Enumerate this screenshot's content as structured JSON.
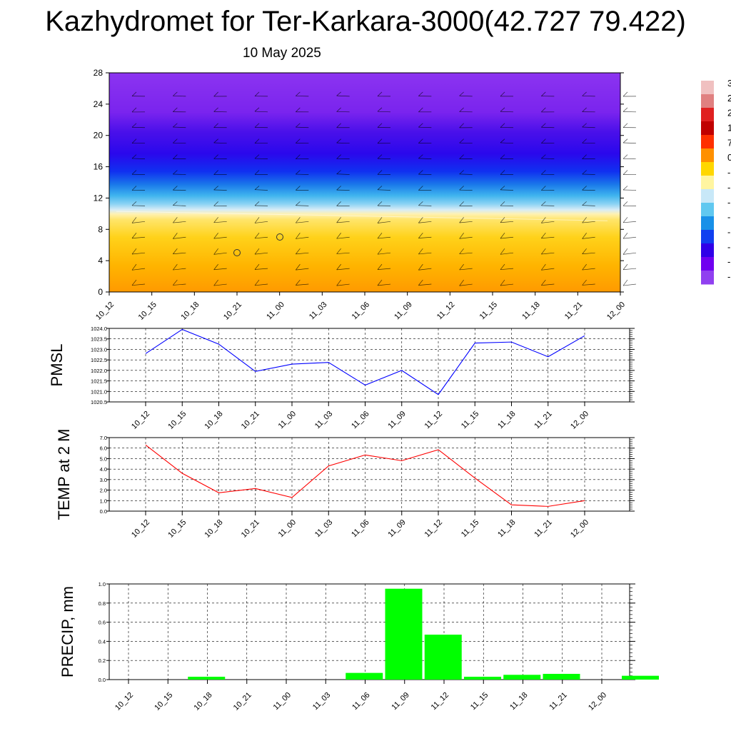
{
  "header": {
    "title": "Kazhydromet for Ter-Karkara-3000(42.727 79.422)",
    "date": "10 May 2025"
  },
  "colors": {
    "pmsl_line": "#0000ff",
    "temp_line": "#ff0000",
    "precip_bar": "#00ff00",
    "grid": "#000000"
  },
  "chart_data": [
    {
      "id": "profile",
      "type": "heatmap",
      "title": "",
      "ylabel": "",
      "x": [
        "10_12",
        "10_15",
        "10_18",
        "10_21",
        "11_00",
        "11_03",
        "11_06",
        "11_09",
        "11_12",
        "11_15",
        "11_18",
        "11_21",
        "12_00"
      ],
      "y_ticks": [
        0,
        4,
        8,
        12,
        16,
        20,
        24,
        28
      ],
      "ylim": [
        0,
        28
      ],
      "shaded_variable": "temperature (purple cold aloft, orange warm near surface)",
      "warm_layer_top": [
        10.3,
        10.2,
        10.1,
        10.0,
        9.9,
        9.8,
        9.7,
        9.6,
        9.5,
        9.4,
        9.3,
        9.2,
        9.1
      ],
      "wind_barbs": true,
      "colorbar_labels": [
        "3",
        "2",
        "2",
        "1",
        "7",
        "0",
        "-",
        "-",
        "-",
        "-",
        "-",
        "-",
        "-",
        "-"
      ],
      "colorbar_colors": [
        "#f0c0c0",
        "#e08080",
        "#e02020",
        "#c00000",
        "#ff3000",
        "#ff9000",
        "#ffd700",
        "#fff5a0",
        "#c8e8f8",
        "#60c8f0",
        "#1890e8",
        "#1040f0",
        "#3000e8",
        "#7000f0",
        "#9040f0"
      ]
    },
    {
      "id": "pmsl",
      "type": "line",
      "ylabel": "PMSL",
      "x": [
        "10_12",
        "10_15",
        "10_18",
        "10_21",
        "11_00",
        "11_03",
        "11_06",
        "11_09",
        "11_12",
        "11_15",
        "11_18",
        "11_21",
        "12_00"
      ],
      "ylim": [
        1020.5,
        1024.0
      ],
      "yticks": [
        "1020.5",
        "1021.0",
        "1021.5",
        "1022.0",
        "1022.5",
        "1023.0",
        "1023.5",
        "1024.0"
      ],
      "grid": true,
      "series": [
        {
          "values": [
            1022.8,
            1023.95,
            1023.25,
            1021.95,
            1022.3,
            1022.38,
            1021.3,
            1022.0,
            1020.85,
            1023.3,
            1023.35,
            1022.65,
            1023.65
          ]
        }
      ]
    },
    {
      "id": "temp",
      "type": "line",
      "ylabel": "TEMP at 2 M",
      "x": [
        "10_12",
        "10_15",
        "10_18",
        "10_21",
        "11_00",
        "11_03",
        "11_06",
        "11_09",
        "11_12",
        "11_15",
        "11_18",
        "11_21",
        "12_00"
      ],
      "ylim": [
        0.0,
        7.0
      ],
      "yticks": [
        "0.0",
        "1.0",
        "2.0",
        "3.0",
        "4.0",
        "5.0",
        "6.0",
        "7.0"
      ],
      "grid": true,
      "series": [
        {
          "values": [
            6.3,
            3.6,
            1.75,
            2.15,
            1.3,
            4.3,
            5.35,
            4.8,
            5.85,
            3.15,
            0.6,
            0.45,
            1.0
          ]
        }
      ]
    },
    {
      "id": "precip",
      "type": "bar",
      "ylabel": "PRECIP, mm",
      "categories": [
        "10_12",
        "10_15",
        "10_18",
        "10_21",
        "11_00",
        "11_03",
        "11_06",
        "11_09",
        "11_12",
        "11_15",
        "11_18",
        "11_21",
        "12_00"
      ],
      "values": [
        0,
        0.03,
        0,
        0,
        0,
        0.07,
        0.95,
        0.47,
        0.03,
        0.05,
        0.06,
        0,
        0.04
      ],
      "ylim": [
        0.0,
        1.0
      ],
      "yticks": [
        "0.0",
        "0.2",
        "0.4",
        "0.6",
        "0.8",
        "1.0"
      ],
      "grid": true
    }
  ]
}
